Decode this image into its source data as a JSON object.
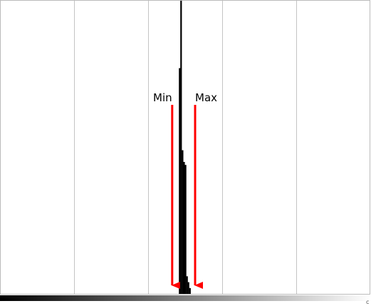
{
  "histogram": {
    "grid_divisions": 5,
    "min_label": "Min",
    "max_label": "Max",
    "min_position": 0.465,
    "max_position": 0.527,
    "arrow_color": "#ff0000",
    "bar_color": "#000000",
    "bins": [
      {
        "position": 0.483,
        "height": 0.77
      },
      {
        "position": 0.487,
        "height": 1.0
      },
      {
        "position": 0.491,
        "height": 0.49
      },
      {
        "position": 0.495,
        "height": 0.45
      },
      {
        "position": 0.499,
        "height": 0.44
      },
      {
        "position": 0.503,
        "height": 0.06
      },
      {
        "position": 0.507,
        "height": 0.04
      },
      {
        "position": 0.511,
        "height": 0.02
      }
    ],
    "end_tick": "c"
  }
}
